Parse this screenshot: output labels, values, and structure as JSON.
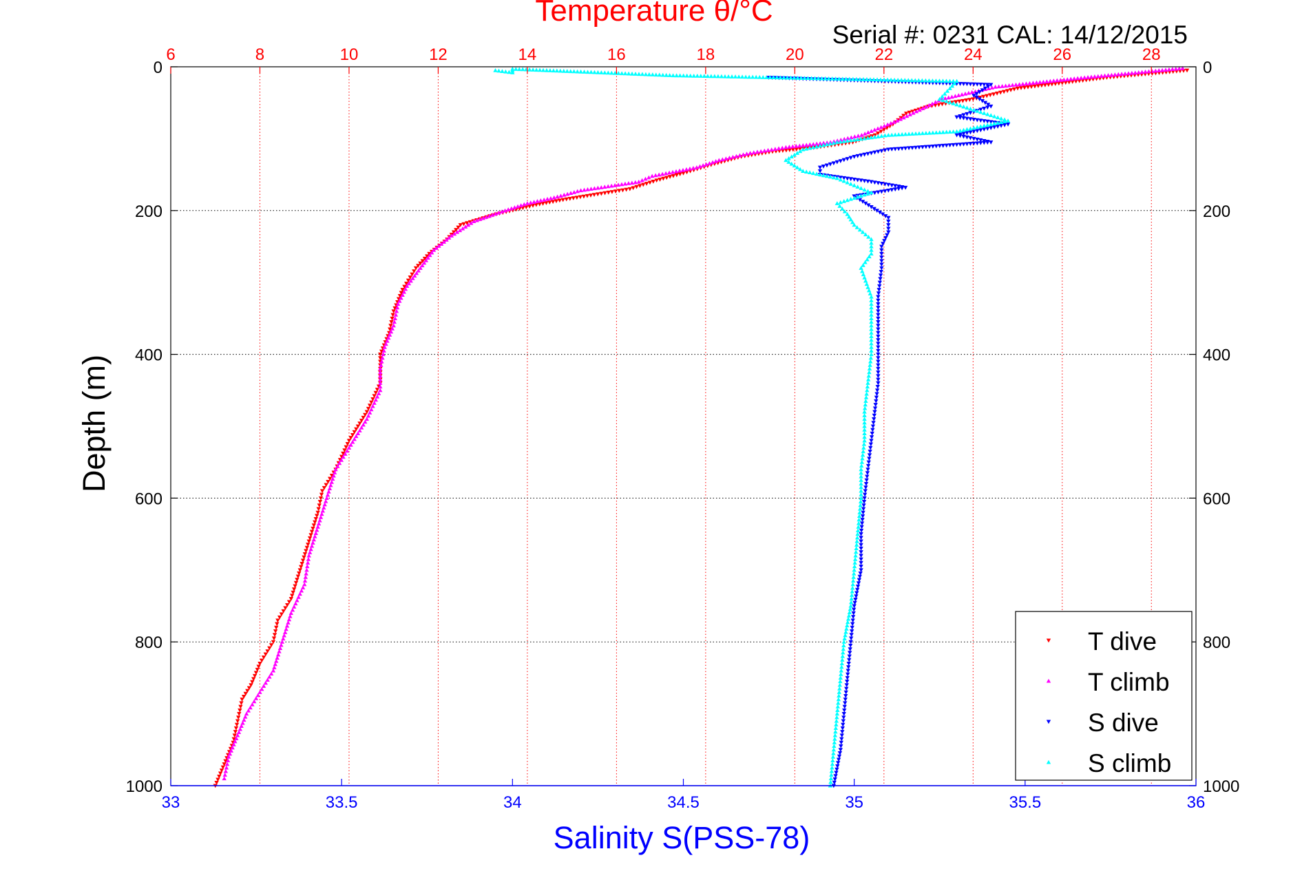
{
  "chart_data": {
    "type": "scatter",
    "title": "Temperature θ/°C",
    "subtitle": "Serial #: 0231  CAL: 14/12/2015",
    "ylabel": "Depth (m)",
    "xlabel": "Salinity S(PSS-78)",
    "top_axis": {
      "label": "Temperature θ/°C",
      "range": [
        6,
        29
      ],
      "ticks": [
        6,
        8,
        10,
        12,
        14,
        16,
        18,
        20,
        22,
        24,
        26,
        28
      ],
      "tick_labels": [
        "6",
        "8",
        "10",
        "12",
        "14",
        "16",
        "18",
        "20",
        "22",
        "24",
        "26",
        "28"
      ],
      "color": "#ff0000"
    },
    "bottom_axis": {
      "label": "Salinity S(PSS-78)",
      "range": [
        33,
        36
      ],
      "ticks": [
        33,
        33.5,
        34,
        34.5,
        35,
        35.5,
        36
      ],
      "tick_labels": [
        "33",
        "33.5",
        "34",
        "34.5",
        "35",
        "35.5",
        "36"
      ],
      "color": "#0000ff"
    },
    "y_axis": {
      "range": [
        0,
        1000
      ],
      "reversed": true,
      "ticks": [
        0,
        200,
        400,
        600,
        800,
        1000
      ],
      "tick_labels": [
        "0",
        "200",
        "400",
        "600",
        "800",
        "1000"
      ]
    },
    "grid": true,
    "legend_position": "bottom-right",
    "series": [
      {
        "name": "T dive",
        "axis": "temperature",
        "color": "#ff0000",
        "marker": "triangle-down",
        "points": [
          [
            28.8,
            5
          ],
          [
            27.0,
            15
          ],
          [
            25.0,
            30
          ],
          [
            24.0,
            45
          ],
          [
            23.0,
            55
          ],
          [
            22.5,
            65
          ],
          [
            22.2,
            80
          ],
          [
            21.8,
            95
          ],
          [
            21.3,
            105
          ],
          [
            20.5,
            112
          ],
          [
            19.5,
            118
          ],
          [
            18.8,
            125
          ],
          [
            18.2,
            135
          ],
          [
            17.5,
            148
          ],
          [
            16.9,
            158
          ],
          [
            16.3,
            170
          ],
          [
            15.5,
            178
          ],
          [
            14.8,
            185
          ],
          [
            14.2,
            192
          ],
          [
            13.3,
            205
          ],
          [
            12.5,
            220
          ],
          [
            12.2,
            240
          ],
          [
            11.8,
            260
          ],
          [
            11.5,
            280
          ],
          [
            11.2,
            310
          ],
          [
            11.0,
            340
          ],
          [
            10.9,
            370
          ],
          [
            10.7,
            400
          ],
          [
            10.7,
            440
          ],
          [
            10.4,
            480
          ],
          [
            10.0,
            520
          ],
          [
            9.7,
            560
          ],
          [
            9.4,
            590
          ],
          [
            9.3,
            620
          ],
          [
            9.1,
            660
          ],
          [
            8.9,
            700
          ],
          [
            8.7,
            740
          ],
          [
            8.4,
            770
          ],
          [
            8.3,
            800
          ],
          [
            8.0,
            830
          ],
          [
            7.8,
            860
          ],
          [
            7.6,
            880
          ],
          [
            7.5,
            910
          ],
          [
            7.4,
            940
          ],
          [
            7.2,
            970
          ],
          [
            7.0,
            1000
          ]
        ]
      },
      {
        "name": "T climb",
        "axis": "temperature",
        "color": "#ff00ff",
        "marker": "triangle-up",
        "points": [
          [
            28.7,
            2
          ],
          [
            26.5,
            15
          ],
          [
            24.5,
            28
          ],
          [
            23.3,
            45
          ],
          [
            22.8,
            60
          ],
          [
            22.3,
            75
          ],
          [
            21.5,
            95
          ],
          [
            20.8,
            105
          ],
          [
            19.8,
            112
          ],
          [
            19.0,
            120
          ],
          [
            18.3,
            130
          ],
          [
            17.8,
            140
          ],
          [
            16.8,
            152
          ],
          [
            16.5,
            160
          ],
          [
            15.2,
            172
          ],
          [
            14.6,
            182
          ],
          [
            14.0,
            190
          ],
          [
            13.5,
            200
          ],
          [
            12.8,
            215
          ],
          [
            12.3,
            235
          ],
          [
            11.9,
            255
          ],
          [
            11.6,
            280
          ],
          [
            11.3,
            305
          ],
          [
            11.1,
            330
          ],
          [
            11.0,
            360
          ],
          [
            10.8,
            390
          ],
          [
            10.7,
            420
          ],
          [
            10.7,
            450
          ],
          [
            10.4,
            490
          ],
          [
            10.0,
            530
          ],
          [
            9.7,
            560
          ],
          [
            9.5,
            600
          ],
          [
            9.3,
            640
          ],
          [
            9.1,
            680
          ],
          [
            9.0,
            720
          ],
          [
            8.7,
            760
          ],
          [
            8.5,
            800
          ],
          [
            8.3,
            840
          ],
          [
            8.0,
            870
          ],
          [
            7.7,
            900
          ],
          [
            7.5,
            930
          ],
          [
            7.3,
            960
          ],
          [
            7.2,
            990
          ]
        ]
      },
      {
        "name": "S dive",
        "axis": "salinity",
        "color": "#0000ff",
        "marker": "triangle-down",
        "points": [
          [
            34.75,
            15
          ],
          [
            35.4,
            25
          ],
          [
            35.35,
            40
          ],
          [
            35.4,
            55
          ],
          [
            35.3,
            70
          ],
          [
            35.45,
            80
          ],
          [
            35.3,
            95
          ],
          [
            35.4,
            105
          ],
          [
            35.1,
            115
          ],
          [
            35.0,
            125
          ],
          [
            34.9,
            140
          ],
          [
            34.9,
            150
          ],
          [
            35.05,
            160
          ],
          [
            35.15,
            168
          ],
          [
            35.0,
            180
          ],
          [
            35.05,
            195
          ],
          [
            35.1,
            210
          ],
          [
            35.1,
            230
          ],
          [
            35.08,
            250
          ],
          [
            35.08,
            280
          ],
          [
            35.07,
            320
          ],
          [
            35.07,
            360
          ],
          [
            35.07,
            400
          ],
          [
            35.07,
            440
          ],
          [
            35.06,
            480
          ],
          [
            35.05,
            520
          ],
          [
            35.04,
            560
          ],
          [
            35.03,
            600
          ],
          [
            35.02,
            650
          ],
          [
            35.02,
            700
          ],
          [
            35.0,
            750
          ],
          [
            34.99,
            800
          ],
          [
            34.98,
            850
          ],
          [
            34.97,
            900
          ],
          [
            34.96,
            950
          ],
          [
            34.94,
            1000
          ]
        ]
      },
      {
        "name": "S climb",
        "axis": "salinity",
        "color": "#00ffff",
        "marker": "triangle-up",
        "points": [
          [
            33.95,
            5
          ],
          [
            34.0,
            8
          ],
          [
            34.0,
            3
          ],
          [
            34.47,
            12
          ],
          [
            35.3,
            20
          ],
          [
            35.28,
            30
          ],
          [
            35.25,
            45
          ],
          [
            35.35,
            60
          ],
          [
            35.45,
            75
          ],
          [
            35.3,
            90
          ],
          [
            35.1,
            95
          ],
          [
            34.95,
            105
          ],
          [
            34.85,
            115
          ],
          [
            34.8,
            130
          ],
          [
            34.85,
            145
          ],
          [
            34.95,
            155
          ],
          [
            35.0,
            165
          ],
          [
            35.05,
            175
          ],
          [
            34.95,
            190
          ],
          [
            34.98,
            205
          ],
          [
            35.0,
            220
          ],
          [
            35.05,
            240
          ],
          [
            35.05,
            260
          ],
          [
            35.02,
            280
          ],
          [
            35.05,
            320
          ],
          [
            35.05,
            360
          ],
          [
            35.05,
            400
          ],
          [
            35.04,
            440
          ],
          [
            35.03,
            480
          ],
          [
            35.03,
            520
          ],
          [
            35.02,
            560
          ],
          [
            35.02,
            600
          ],
          [
            35.01,
            650
          ],
          [
            35.0,
            700
          ],
          [
            34.99,
            750
          ],
          [
            34.97,
            800
          ],
          [
            34.96,
            850
          ],
          [
            34.95,
            900
          ],
          [
            34.94,
            950
          ],
          [
            34.93,
            1000
          ]
        ]
      }
    ]
  }
}
